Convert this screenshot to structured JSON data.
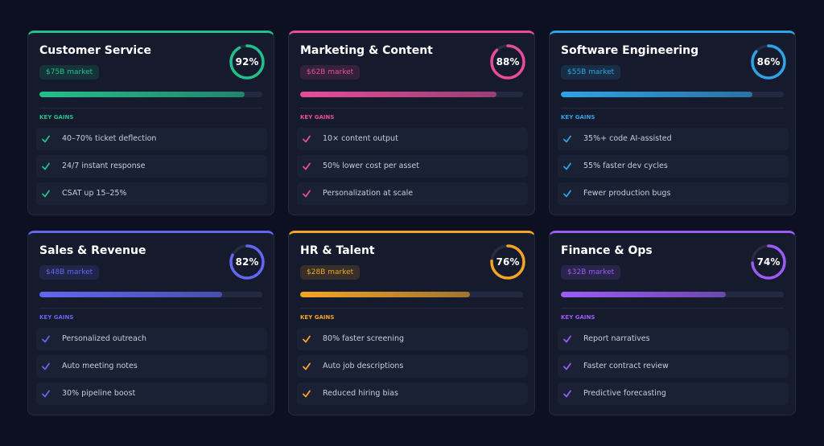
{
  "cards": [
    {
      "title": "Customer Service",
      "market": "$75B market",
      "score": {
        "value": 92,
        "label": "92%"
      },
      "color": "#22c08a",
      "section": "KEY GAINS",
      "gains": [
        "40–70% ticket deflection",
        "24/7 instant response",
        "CSAT up 15–25%"
      ]
    },
    {
      "title": "Marketing & Content",
      "market": "$62B market",
      "score": {
        "value": 88,
        "label": "88%"
      },
      "color": "#e84c9a",
      "section": "KEY GAINS",
      "gains": [
        "10× content output",
        "50% lower cost per asset",
        "Personalization at scale"
      ]
    },
    {
      "title": "Software Engineering",
      "market": "$55B market",
      "score": {
        "value": 86,
        "label": "86%"
      },
      "color": "#2ea3e6",
      "section": "KEY GAINS",
      "gains": [
        "35%+ code AI-assisted",
        "55% faster dev cycles",
        "Fewer production bugs"
      ]
    },
    {
      "title": "Sales & Revenue",
      "market": "$48B market",
      "score": {
        "value": 82,
        "label": "82%"
      },
      "color": "#6366f1",
      "section": "KEY GAINS",
      "gains": [
        "Personalized outreach",
        "Auto meeting notes",
        "30% pipeline boost"
      ]
    },
    {
      "title": "HR & Talent",
      "market": "$28B market",
      "score": {
        "value": 76,
        "label": "76%"
      },
      "color": "#f5a524",
      "section": "KEY GAINS",
      "gains": [
        "80% faster screening",
        "Auto job descriptions",
        "Reduced hiring bias"
      ]
    },
    {
      "title": "Finance & Ops",
      "market": "$32B market",
      "score": {
        "value": 74,
        "label": "74%"
      },
      "color": "#9b5cf6",
      "section": "KEY GAINS",
      "gains": [
        "Report narratives",
        "Faster contract review",
        "Predictive forecasting"
      ]
    }
  ]
}
